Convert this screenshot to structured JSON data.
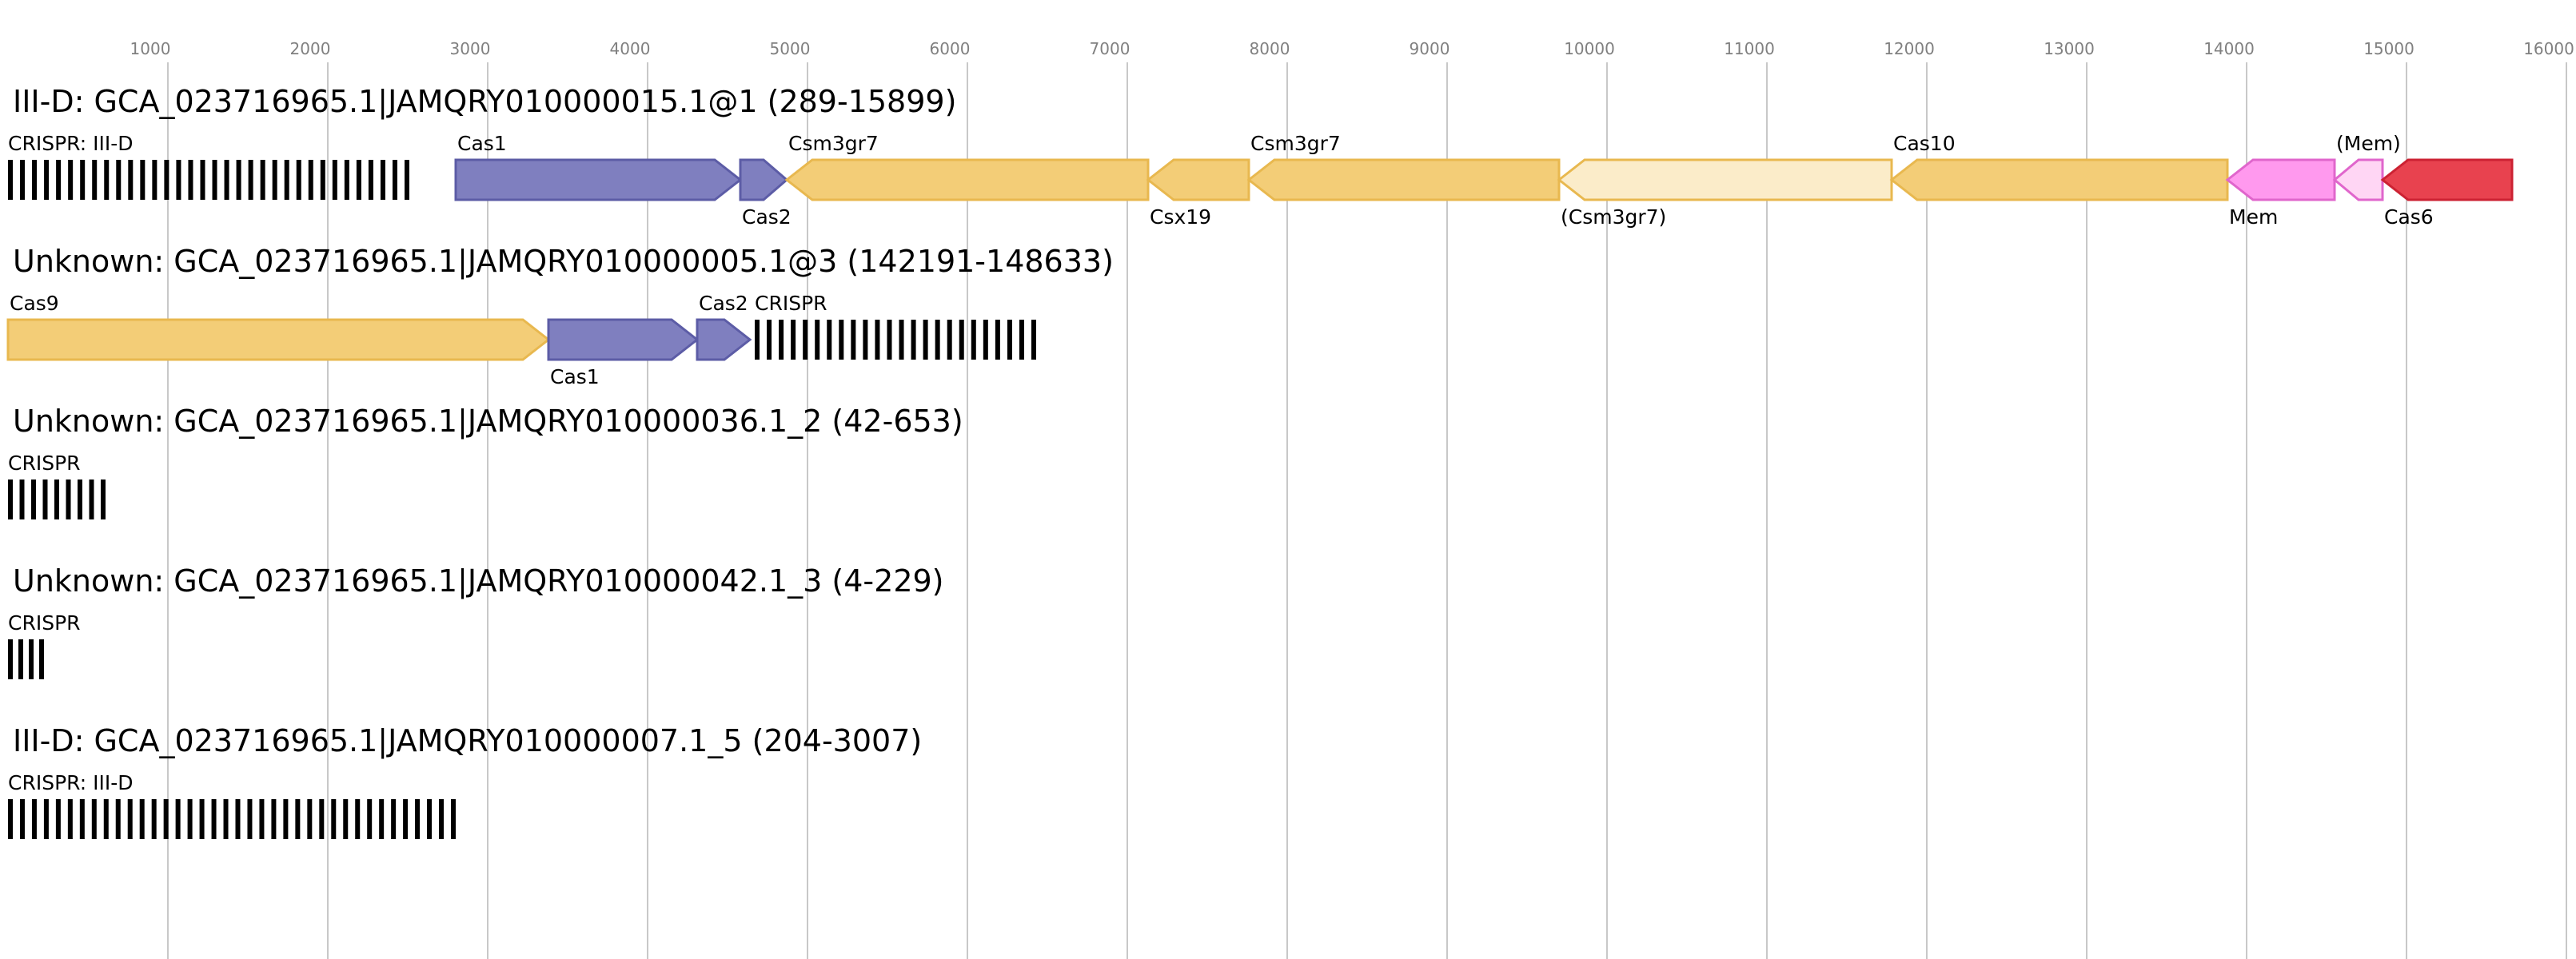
{
  "axis": {
    "ticks": [
      1000,
      2000,
      3000,
      4000,
      5000,
      6000,
      7000,
      8000,
      9000,
      10000,
      11000,
      12000,
      13000,
      14000,
      15000,
      16000
    ]
  },
  "colors": {
    "purple_fill": "#7f7fbf",
    "purple_stroke": "#5c5ca6",
    "gold_fill": "#f3cd77",
    "gold_stroke": "#e8b84f",
    "pale_fill": "#fbecc9",
    "pink_fill": "#ff99ee",
    "pink_stroke": "#e066cc",
    "pale_pink_fill": "#ffd6f4",
    "red_fill": "#e8424f",
    "red_stroke": "#cc2233",
    "crispr": "#000000"
  },
  "loci": [
    {
      "title": "III-D: GCA_023716965.1|JAMQRY010000015.1@1 (289-15899)",
      "crispr": {
        "label": "CRISPR: III-D",
        "start": 0,
        "end": 2510,
        "repeats": 34
      },
      "genes": [
        {
          "name": "Cas1",
          "start": 2800,
          "end": 4580,
          "strand": "+",
          "color": "purple",
          "label_pos": "above"
        },
        {
          "name": "Cas2",
          "start": 4580,
          "end": 4870,
          "strand": "+",
          "color": "purple",
          "label_pos": "below"
        },
        {
          "name": "Csm3gr7",
          "start": 4870,
          "end": 7130,
          "strand": "-",
          "color": "gold",
          "label_pos": "above"
        },
        {
          "name": "Csx19",
          "start": 7130,
          "end": 7760,
          "strand": "-",
          "color": "gold",
          "label_pos": "below"
        },
        {
          "name": "Csm3gr7",
          "start": 7760,
          "end": 9700,
          "strand": "-",
          "color": "gold",
          "label_pos": "above"
        },
        {
          "name": "(Csm3gr7)",
          "start": 9700,
          "end": 11780,
          "strand": "-",
          "color": "pale",
          "label_pos": "below"
        },
        {
          "name": "Cas10",
          "start": 11780,
          "end": 13880,
          "strand": "-",
          "color": "gold",
          "label_pos": "above"
        },
        {
          "name": "Mem",
          "start": 13880,
          "end": 14550,
          "strand": "-",
          "color": "pink",
          "label_pos": "below"
        },
        {
          "name": "(Mem)",
          "start": 14550,
          "end": 14850,
          "strand": "-",
          "color": "pale_pink",
          "label_pos": "above"
        },
        {
          "name": "Cas6",
          "start": 14850,
          "end": 15660,
          "strand": "-",
          "color": "red",
          "label_pos": "below"
        }
      ]
    },
    {
      "title": "Unknown: GCA_023716965.1|JAMQRY010000005.1@3 (142191-148633)",
      "crispr": {
        "label": "CRISPR",
        "start": 4670,
        "end": 6430,
        "repeats": 24
      },
      "genes": [
        {
          "name": "Cas9",
          "start": 0,
          "end": 3380,
          "strand": "+",
          "color": "gold",
          "label_pos": "above"
        },
        {
          "name": "Cas1",
          "start": 3380,
          "end": 4310,
          "strand": "+",
          "color": "purple",
          "label_pos": "below"
        },
        {
          "name": "Cas2",
          "start": 4310,
          "end": 4640,
          "strand": "+",
          "color": "purple",
          "label_pos": "above"
        }
      ]
    },
    {
      "title": "Unknown: GCA_023716965.1|JAMQRY010000036.1_2 (42-653)",
      "crispr": {
        "label": "CRISPR",
        "start": 0,
        "end": 610,
        "repeats": 9
      },
      "genes": []
    },
    {
      "title": "Unknown: GCA_023716965.1|JAMQRY010000042.1_3 (4-229)",
      "crispr": {
        "label": "CRISPR",
        "start": 0,
        "end": 225,
        "repeats": 4
      },
      "genes": []
    },
    {
      "title": "III-D: GCA_023716965.1|JAMQRY010000007.1_5 (204-3007)",
      "crispr": {
        "label": "CRISPR: III-D",
        "start": 0,
        "end": 2800,
        "repeats": 38
      },
      "genes": []
    }
  ]
}
